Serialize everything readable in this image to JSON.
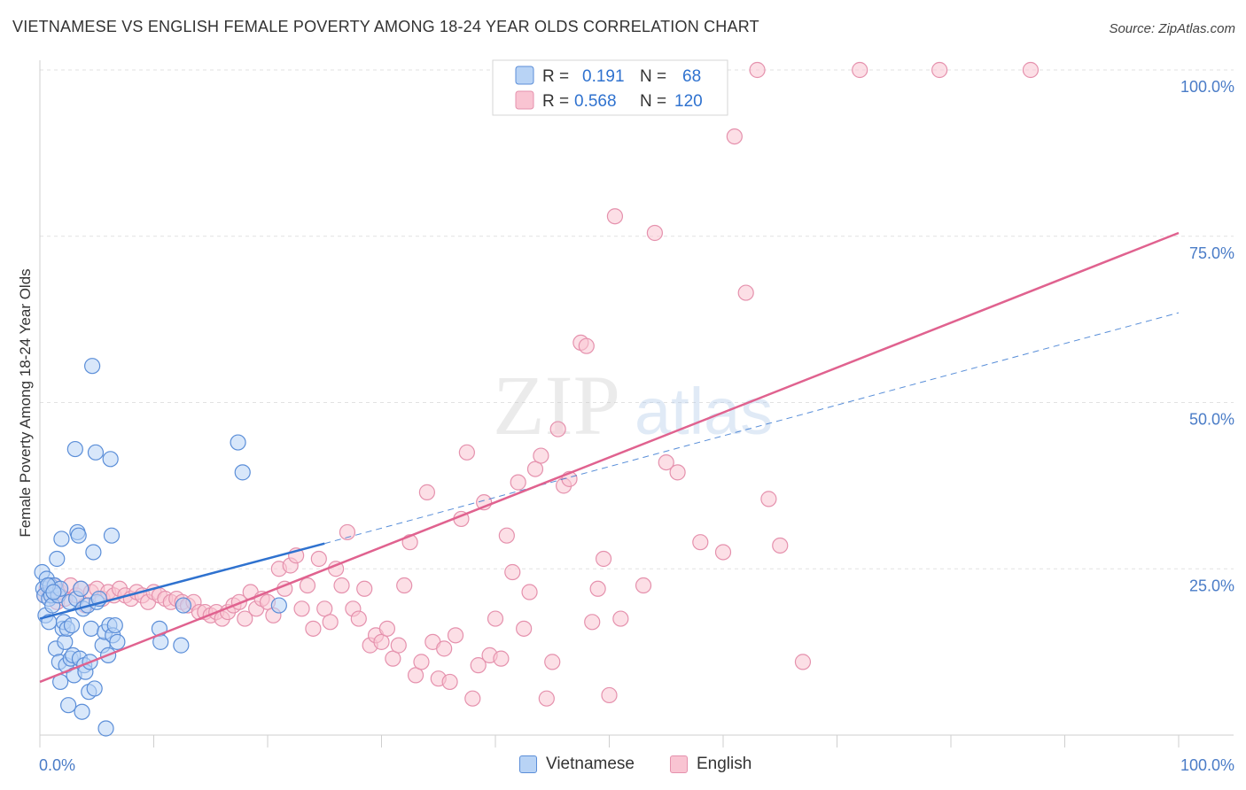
{
  "title": "VIETNAMESE VS ENGLISH FEMALE POVERTY AMONG 18-24 YEAR OLDS CORRELATION CHART",
  "source": "Source: ZipAtlas.com",
  "watermark": {
    "zip": "ZIP",
    "atlas": "atlas"
  },
  "colors": {
    "vietnamese_fill": "#b8d3f5",
    "vietnamese_stroke": "#5b8ed8",
    "vietnamese_line": "#2f72cf",
    "english_fill": "#f9c4d2",
    "english_stroke": "#e591ad",
    "english_line": "#e0628f",
    "tick_label": "#4a7cc7",
    "grid": "#e2e2e2"
  },
  "legend": {
    "rows": [
      {
        "r_label": "R =",
        "r_value": "0.191",
        "n_label": "N =",
        "n_value": "68"
      },
      {
        "r_label": "R =",
        "r_value": "0.568",
        "n_label": "N =",
        "n_value": "120"
      }
    ]
  },
  "bottom_legend": [
    "Vietnamese",
    "English"
  ],
  "chart_data": {
    "type": "scatter",
    "title": "VIETNAMESE VS ENGLISH FEMALE POVERTY AMONG 18-24 YEAR OLDS CORRELATION CHART",
    "xlabel": "",
    "ylabel": "Female Poverty Among 18-24 Year Olds",
    "xlim": [
      0,
      100
    ],
    "ylim": [
      0,
      100
    ],
    "x_tick_labels": [
      "0.0%",
      "100.0%"
    ],
    "y_tick_labels": [
      "25.0%",
      "50.0%",
      "75.0%",
      "100.0%"
    ],
    "y_ticks": [
      25,
      50,
      75,
      100
    ],
    "grid": true,
    "legend_position": "top-center",
    "series": [
      {
        "name": "Vietnamese",
        "r": 0.191,
        "n": 68,
        "trend": {
          "x": [
            0,
            25
          ],
          "y": [
            17.5,
            28.8
          ],
          "dashed_extension_to": [
            100,
            63.5
          ]
        },
        "points": [
          [
            0.2,
            24.5
          ],
          [
            0.3,
            22
          ],
          [
            0.4,
            21
          ],
          [
            0.5,
            18
          ],
          [
            0.6,
            23.5
          ],
          [
            0.8,
            20.5
          ],
          [
            0.8,
            17
          ],
          [
            0.9,
            22.5
          ],
          [
            1.0,
            21
          ],
          [
            1.1,
            19.5
          ],
          [
            1.3,
            22.5
          ],
          [
            1.4,
            13
          ],
          [
            1.5,
            26.5
          ],
          [
            1.6,
            21
          ],
          [
            1.7,
            11
          ],
          [
            1.8,
            8
          ],
          [
            1.8,
            22
          ],
          [
            1.9,
            29.5
          ],
          [
            2.0,
            16
          ],
          [
            2.1,
            17
          ],
          [
            2.2,
            14
          ],
          [
            2.3,
            10.5
          ],
          [
            2.4,
            16
          ],
          [
            2.5,
            4.5
          ],
          [
            2.6,
            20
          ],
          [
            2.7,
            11.5
          ],
          [
            2.8,
            16.5
          ],
          [
            2.9,
            12
          ],
          [
            3.0,
            9
          ],
          [
            3.1,
            43
          ],
          [
            3.2,
            20.5
          ],
          [
            3.3,
            30.5
          ],
          [
            3.4,
            30
          ],
          [
            3.5,
            11.5
          ],
          [
            3.6,
            22
          ],
          [
            3.7,
            3.5
          ],
          [
            3.8,
            19
          ],
          [
            3.9,
            10.5
          ],
          [
            4.0,
            9.5
          ],
          [
            4.2,
            19.5
          ],
          [
            4.3,
            6.5
          ],
          [
            4.4,
            11
          ],
          [
            4.5,
            16
          ],
          [
            4.6,
            55.5
          ],
          [
            4.7,
            27.5
          ],
          [
            4.8,
            7
          ],
          [
            4.9,
            42.5
          ],
          [
            5.0,
            20
          ],
          [
            5.2,
            20.5
          ],
          [
            5.5,
            13.5
          ],
          [
            5.7,
            15.5
          ],
          [
            5.8,
            1
          ],
          [
            6.0,
            12
          ],
          [
            6.1,
            16.5
          ],
          [
            6.2,
            41.5
          ],
          [
            6.3,
            30
          ],
          [
            6.4,
            15
          ],
          [
            6.6,
            16.5
          ],
          [
            6.8,
            14
          ],
          [
            10.5,
            16
          ],
          [
            10.6,
            14
          ],
          [
            12.4,
            13.5
          ],
          [
            12.6,
            19.5
          ],
          [
            17.4,
            44
          ],
          [
            17.8,
            39.5
          ],
          [
            21.0,
            19.5
          ],
          [
            0.7,
            22.5
          ],
          [
            1.2,
            21.5
          ]
        ]
      },
      {
        "name": "English",
        "r": 0.568,
        "n": 120,
        "trend": {
          "x": [
            0,
            100
          ],
          "y": [
            8,
            75.5
          ]
        },
        "points": [
          [
            0.4,
            21
          ],
          [
            0.6,
            22
          ],
          [
            0.9,
            21.5
          ],
          [
            1.2,
            22.5
          ],
          [
            1.5,
            20
          ],
          [
            1.8,
            21.5
          ],
          [
            2.2,
            20.5
          ],
          [
            2.7,
            22.5
          ],
          [
            3.2,
            21
          ],
          [
            3.6,
            22
          ],
          [
            4.0,
            19.5
          ],
          [
            4.5,
            21.5
          ],
          [
            5.0,
            22
          ],
          [
            5.5,
            20.5
          ],
          [
            6.0,
            21.5
          ],
          [
            6.5,
            21
          ],
          [
            7.0,
            22
          ],
          [
            7.5,
            21
          ],
          [
            8.0,
            20.5
          ],
          [
            8.5,
            21.5
          ],
          [
            9.0,
            21
          ],
          [
            9.5,
            20
          ],
          [
            10.0,
            21.5
          ],
          [
            10.5,
            21
          ],
          [
            11.0,
            20.5
          ],
          [
            11.5,
            20
          ],
          [
            12.0,
            20.5
          ],
          [
            12.5,
            20
          ],
          [
            13.0,
            19.5
          ],
          [
            13.5,
            20
          ],
          [
            14.0,
            18.5
          ],
          [
            14.5,
            18.5
          ],
          [
            15.0,
            18
          ],
          [
            15.5,
            18.5
          ],
          [
            16.0,
            17.5
          ],
          [
            16.5,
            18.5
          ],
          [
            17.0,
            19.5
          ],
          [
            17.5,
            20
          ],
          [
            18.0,
            17.5
          ],
          [
            18.5,
            21.5
          ],
          [
            19.0,
            19
          ],
          [
            19.5,
            20.5
          ],
          [
            20.0,
            20
          ],
          [
            20.5,
            18
          ],
          [
            21.0,
            25
          ],
          [
            21.5,
            22
          ],
          [
            22.0,
            25.5
          ],
          [
            22.5,
            27
          ],
          [
            23.0,
            19
          ],
          [
            23.5,
            22.5
          ],
          [
            24.0,
            16
          ],
          [
            24.5,
            26.5
          ],
          [
            25.0,
            19
          ],
          [
            25.5,
            17
          ],
          [
            26.0,
            25
          ],
          [
            26.5,
            22.5
          ],
          [
            27.0,
            30.5
          ],
          [
            27.5,
            19
          ],
          [
            28.0,
            17.5
          ],
          [
            28.5,
            22
          ],
          [
            29.0,
            13.5
          ],
          [
            29.5,
            15
          ],
          [
            30.0,
            14
          ],
          [
            30.5,
            16
          ],
          [
            31.0,
            11.5
          ],
          [
            31.5,
            13.5
          ],
          [
            32.0,
            22.5
          ],
          [
            32.5,
            29
          ],
          [
            33.0,
            9
          ],
          [
            33.5,
            11
          ],
          [
            34.0,
            36.5
          ],
          [
            34.5,
            14
          ],
          [
            35.0,
            8.5
          ],
          [
            35.5,
            13
          ],
          [
            36.0,
            8
          ],
          [
            36.5,
            15
          ],
          [
            37.0,
            32.5
          ],
          [
            37.5,
            42.5
          ],
          [
            38.0,
            5.5
          ],
          [
            38.5,
            10.5
          ],
          [
            39.0,
            35
          ],
          [
            39.5,
            12
          ],
          [
            40.0,
            17.5
          ],
          [
            40.5,
            11.5
          ],
          [
            41.0,
            30
          ],
          [
            41.5,
            24.5
          ],
          [
            42.0,
            38
          ],
          [
            42.5,
            16
          ],
          [
            43.0,
            21.5
          ],
          [
            43.5,
            40
          ],
          [
            44.0,
            42
          ],
          [
            44.5,
            5.5
          ],
          [
            45.0,
            11
          ],
          [
            45.5,
            46
          ],
          [
            46.0,
            37.5
          ],
          [
            46.5,
            38.5
          ],
          [
            47.0,
            100
          ],
          [
            47.5,
            59
          ],
          [
            48.0,
            58.5
          ],
          [
            48.5,
            17
          ],
          [
            49.0,
            22
          ],
          [
            49.5,
            26.5
          ],
          [
            50.0,
            6
          ],
          [
            50.5,
            78
          ],
          [
            51.0,
            17.5
          ],
          [
            52.0,
            100
          ],
          [
            53.0,
            22.5
          ],
          [
            54.0,
            75.5
          ],
          [
            55.0,
            41
          ],
          [
            56.0,
            39.5
          ],
          [
            58.0,
            29
          ],
          [
            59.0,
            100
          ],
          [
            60.0,
            27.5
          ],
          [
            61.0,
            90
          ],
          [
            62.0,
            66.5
          ],
          [
            63.0,
            100
          ],
          [
            64.0,
            35.5
          ],
          [
            65.0,
            28.5
          ],
          [
            67.0,
            11
          ],
          [
            72.0,
            100
          ],
          [
            79.0,
            100
          ],
          [
            87.0,
            100
          ]
        ]
      }
    ]
  }
}
